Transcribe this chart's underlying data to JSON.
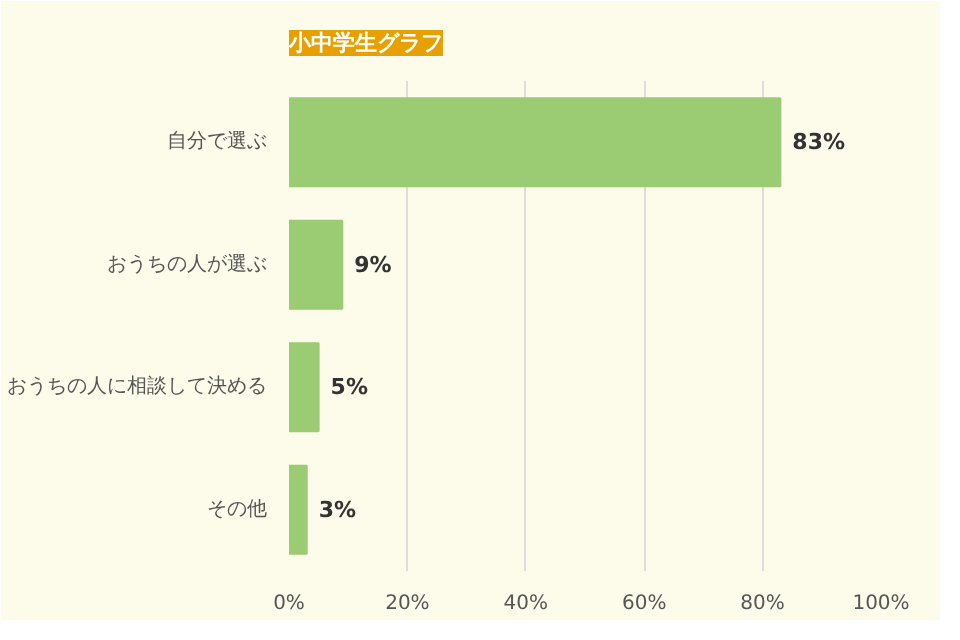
{
  "chart_data": {
    "type": "bar",
    "orientation": "horizontal",
    "title": "小中学生グラフ",
    "categories": [
      "自分で選ぶ",
      "おうちの人が選ぶ",
      "おうちの人に相談して決める",
      "その他"
    ],
    "values": [
      83,
      9,
      5,
      3
    ],
    "value_labels": [
      "83%",
      "9%",
      "5%",
      "3%"
    ],
    "color": "#9bcc74",
    "xlim": [
      0,
      100
    ],
    "xticks": [
      {
        "value": 0,
        "label": "0%"
      },
      {
        "value": 20,
        "label": "20%"
      },
      {
        "value": 40,
        "label": "40%"
      },
      {
        "value": 60,
        "label": "60%"
      },
      {
        "value": 80,
        "label": "80%"
      },
      {
        "value": 100,
        "label": "100%"
      }
    ],
    "grid": "x"
  }
}
